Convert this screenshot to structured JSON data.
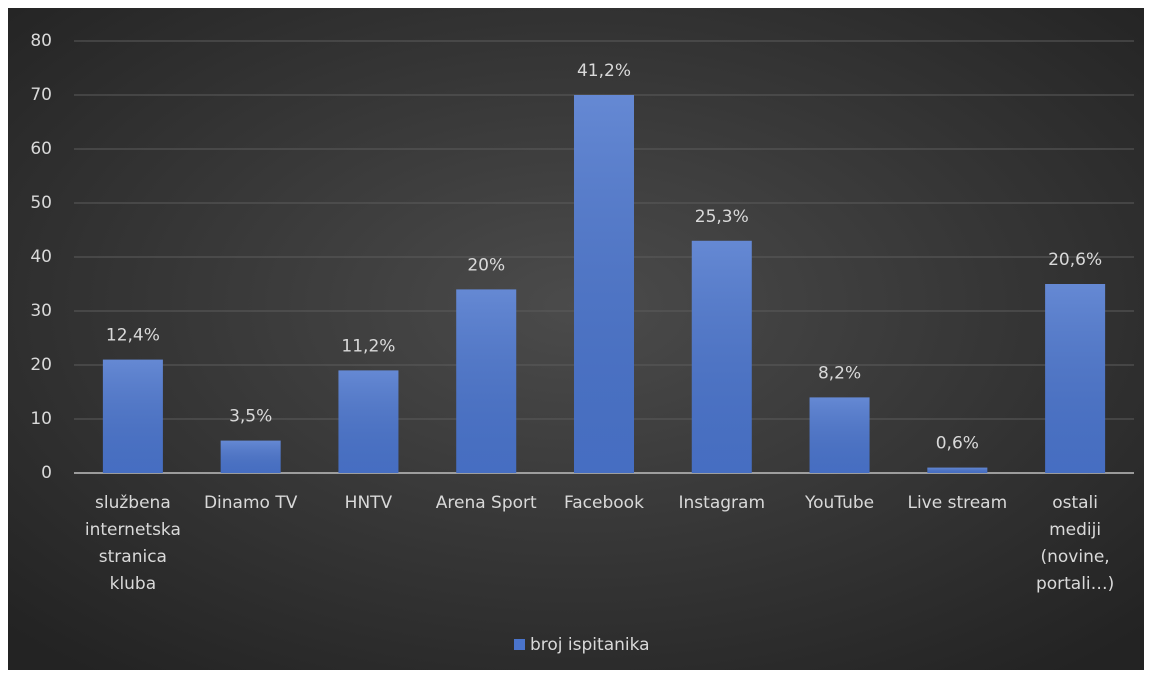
{
  "chart_data": {
    "type": "bar",
    "categories": [
      "službena\ninternetska\nstranica\nkluba",
      "Dinamo TV",
      "HNTV",
      "Arena Sport",
      "Facebook",
      "Instagram",
      "YouTube",
      "Live stream",
      "ostali\nmediji\n(novine,\nportali…)"
    ],
    "series": [
      {
        "name": "broj ispitanika",
        "color": "#4a74cc",
        "values": [
          21,
          6,
          19,
          34,
          70,
          43,
          14,
          1,
          35
        ]
      }
    ],
    "annotations": [
      "12,4%",
      "3,5%",
      "11,2%",
      "20%",
      "41,2%",
      "25,3%",
      "8,2%",
      "0,6%",
      "20,6%"
    ],
    "ylim": [
      0,
      80
    ],
    "yticks": [
      0,
      10,
      20,
      30,
      40,
      50,
      60,
      70,
      80
    ],
    "grid": true,
    "legend": "bottom"
  }
}
